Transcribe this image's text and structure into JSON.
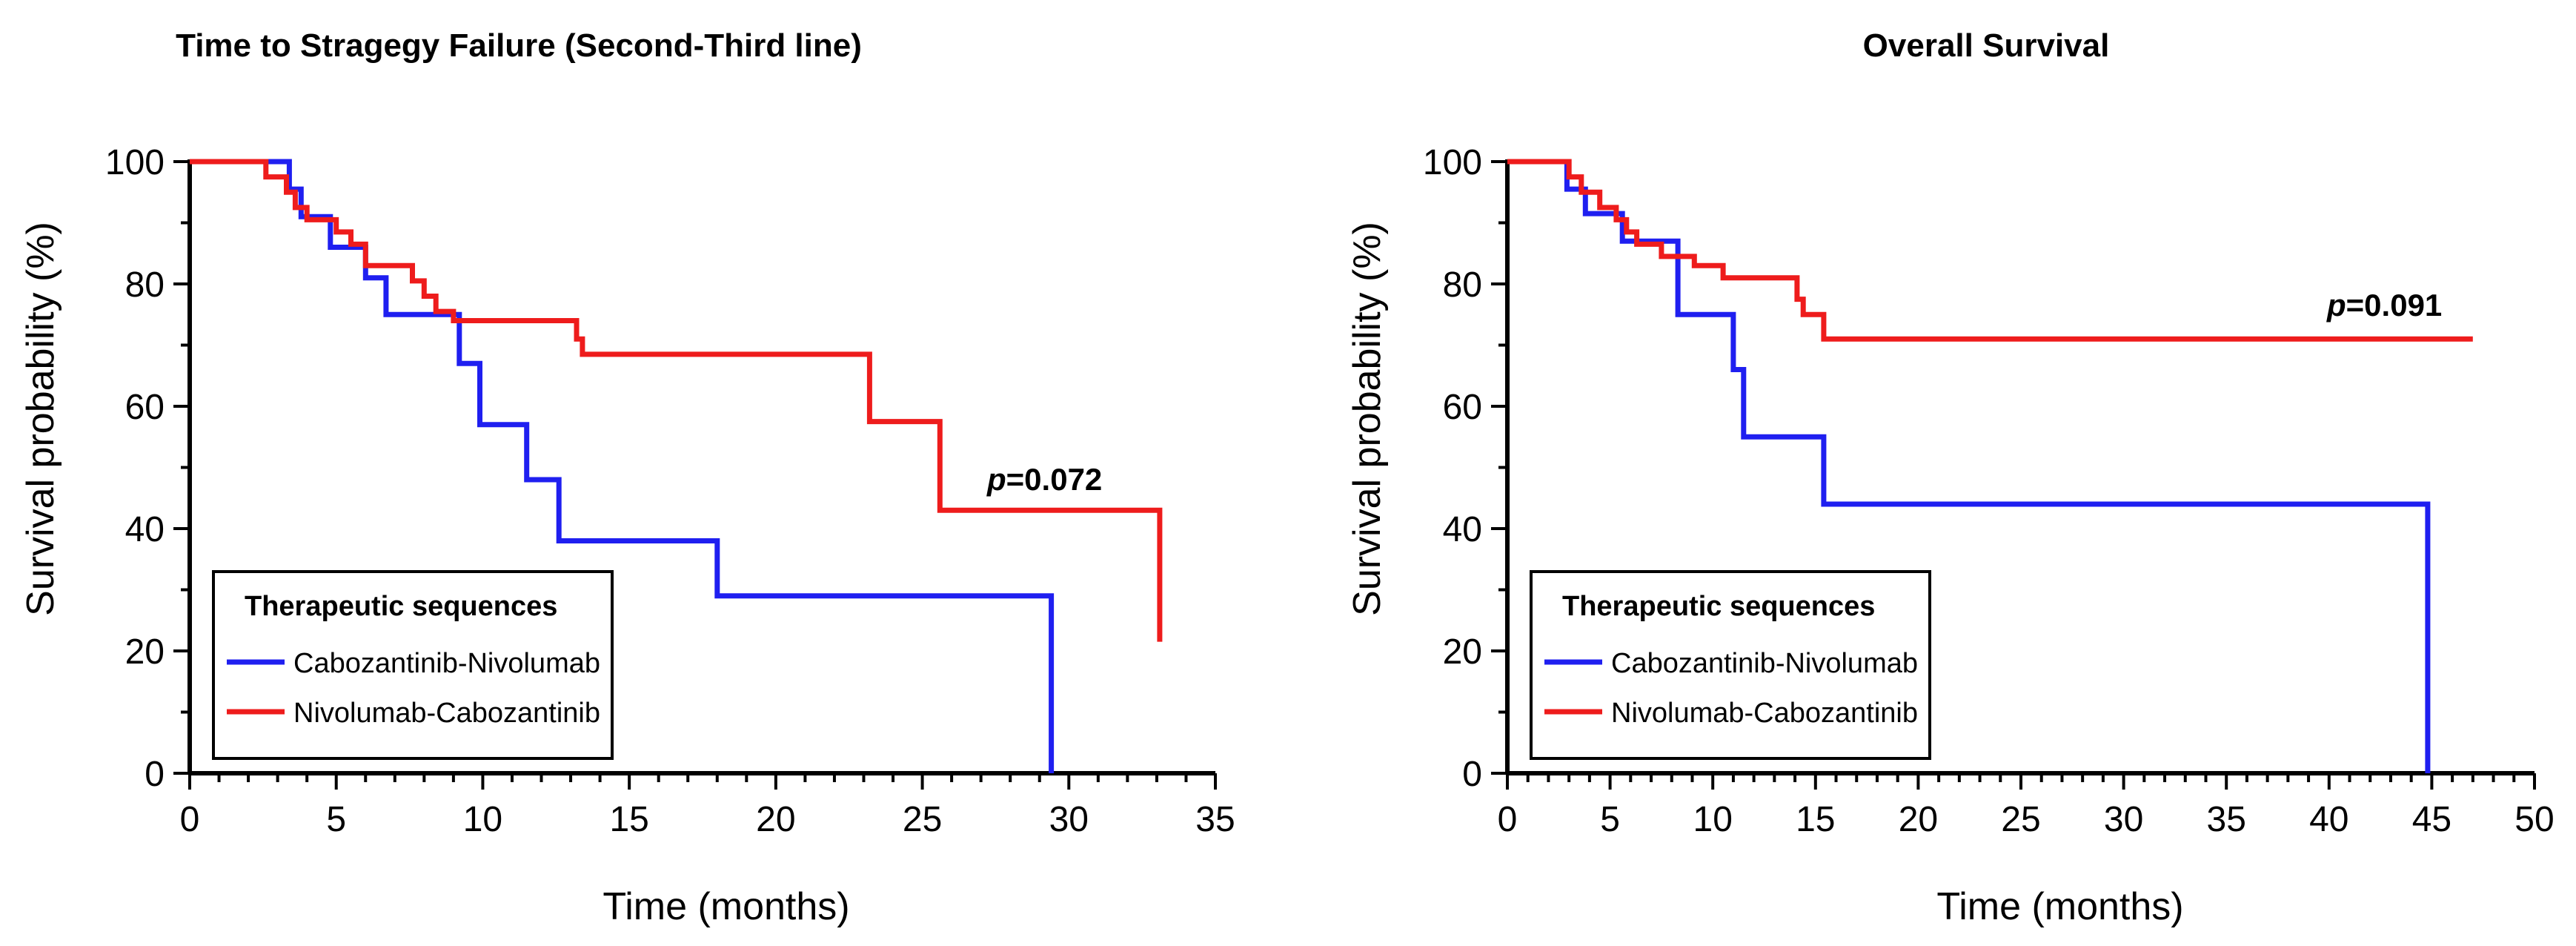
{
  "chart_data": [
    {
      "type": "line",
      "subtype": "kaplan-meier step curve",
      "title": "Time to Stragegy Failure (Second-Third line)",
      "xlabel": "Time (months)",
      "ylabel": "Survival probability (%)",
      "xlim": [
        0,
        35
      ],
      "ylim": [
        0,
        100
      ],
      "xticks": [
        0,
        5,
        10,
        15,
        20,
        25,
        30,
        35
      ],
      "yticks": [
        0,
        20,
        40,
        60,
        80,
        100
      ],
      "grid": false,
      "legend": {
        "title": "Therapeutic sequences",
        "position": "lower-left",
        "entries": [
          "Cabozantinib-Nivolumab",
          "Nivolumab-Cabozantinib"
        ]
      },
      "annotation": {
        "p_symbol": "p",
        "p_value": "=0.072"
      },
      "series": [
        {
          "name": "Cabozantinib-Nivolumab",
          "color": "#1f1ff0",
          "steps": [
            [
              0,
              100
            ],
            [
              3.4,
              100
            ],
            [
              3.4,
              95.5
            ],
            [
              3.8,
              95.5
            ],
            [
              3.8,
              91
            ],
            [
              4.8,
              91
            ],
            [
              4.8,
              86
            ],
            [
              6,
              86
            ],
            [
              6,
              81
            ],
            [
              6.7,
              81
            ],
            [
              6.7,
              75
            ],
            [
              9.2,
              75
            ],
            [
              9.2,
              67
            ],
            [
              9.9,
              67
            ],
            [
              9.9,
              57
            ],
            [
              11.5,
              57
            ],
            [
              11.5,
              48
            ],
            [
              12.6,
              48
            ],
            [
              12.6,
              38
            ],
            [
              18,
              38
            ],
            [
              18,
              29
            ],
            [
              29.4,
              29
            ],
            [
              29.4,
              0
            ]
          ]
        },
        {
          "name": "Nivolumab-Cabozantinib",
          "color": "#ee1c1c",
          "steps": [
            [
              0,
              100
            ],
            [
              2.6,
              100
            ],
            [
              2.6,
              97.5
            ],
            [
              3.3,
              97.5
            ],
            [
              3.3,
              95
            ],
            [
              3.6,
              95
            ],
            [
              3.6,
              92.5
            ],
            [
              4,
              92.5
            ],
            [
              4,
              90.5
            ],
            [
              5,
              90.5
            ],
            [
              5,
              88.5
            ],
            [
              5.5,
              88.5
            ],
            [
              5.5,
              86.5
            ],
            [
              6,
              86.5
            ],
            [
              6,
              83
            ],
            [
              7.6,
              83
            ],
            [
              7.6,
              80.5
            ],
            [
              8,
              80.5
            ],
            [
              8,
              78
            ],
            [
              8.4,
              78
            ],
            [
              8.4,
              75.5
            ],
            [
              9,
              75.5
            ],
            [
              9,
              74
            ],
            [
              13.2,
              74
            ],
            [
              13.2,
              71
            ],
            [
              13.4,
              71
            ],
            [
              13.4,
              68.5
            ],
            [
              23.2,
              68.5
            ],
            [
              23.2,
              57.5
            ],
            [
              25.6,
              57.5
            ],
            [
              25.6,
              43
            ],
            [
              33.1,
              43
            ],
            [
              33.1,
              21.5
            ]
          ]
        }
      ]
    },
    {
      "type": "line",
      "subtype": "kaplan-meier step curve",
      "title": "Overall Survival",
      "xlabel": "Time (months)",
      "ylabel": "Survival probability (%)",
      "xlim": [
        0,
        50
      ],
      "ylim": [
        0,
        100
      ],
      "xticks": [
        0,
        5,
        10,
        15,
        20,
        25,
        30,
        35,
        40,
        45,
        50
      ],
      "yticks": [
        0,
        20,
        40,
        60,
        80,
        100
      ],
      "grid": false,
      "legend": {
        "title": "Therapeutic sequences",
        "position": "lower-left",
        "entries": [
          "Cabozantinib-Nivolumab",
          "Nivolumab-Cabozantinib"
        ]
      },
      "annotation": {
        "p_symbol": "p",
        "p_value": "=0.091"
      },
      "series": [
        {
          "name": "Cabozantinib-Nivolumab",
          "color": "#1f1ff0",
          "steps": [
            [
              0,
              100
            ],
            [
              2.9,
              100
            ],
            [
              2.9,
              95.5
            ],
            [
              3.8,
              95.5
            ],
            [
              3.8,
              91.5
            ],
            [
              5.6,
              91.5
            ],
            [
              5.6,
              87
            ],
            [
              8.3,
              87
            ],
            [
              8.3,
              75
            ],
            [
              11,
              75
            ],
            [
              11,
              66
            ],
            [
              11.5,
              66
            ],
            [
              11.5,
              55
            ],
            [
              15.4,
              55
            ],
            [
              15.4,
              44
            ],
            [
              44.8,
              44
            ],
            [
              44.8,
              0
            ]
          ]
        },
        {
          "name": "Nivolumab-Cabozantinib",
          "color": "#ee1c1c",
          "steps": [
            [
              0,
              100
            ],
            [
              3,
              100
            ],
            [
              3,
              97.5
            ],
            [
              3.6,
              97.5
            ],
            [
              3.6,
              95
            ],
            [
              4.5,
              95
            ],
            [
              4.5,
              92.5
            ],
            [
              5.3,
              92.5
            ],
            [
              5.3,
              90.5
            ],
            [
              5.8,
              90.5
            ],
            [
              5.8,
              88.5
            ],
            [
              6.3,
              88.5
            ],
            [
              6.3,
              86.5
            ],
            [
              7.5,
              86.5
            ],
            [
              7.5,
              84.5
            ],
            [
              9.1,
              84.5
            ],
            [
              9.1,
              83
            ],
            [
              10.5,
              83
            ],
            [
              10.5,
              81
            ],
            [
              14.1,
              81
            ],
            [
              14.1,
              77.5
            ],
            [
              14.4,
              77.5
            ],
            [
              14.4,
              75
            ],
            [
              15.4,
              75
            ],
            [
              15.4,
              71
            ],
            [
              47,
              71
            ]
          ]
        }
      ]
    }
  ]
}
